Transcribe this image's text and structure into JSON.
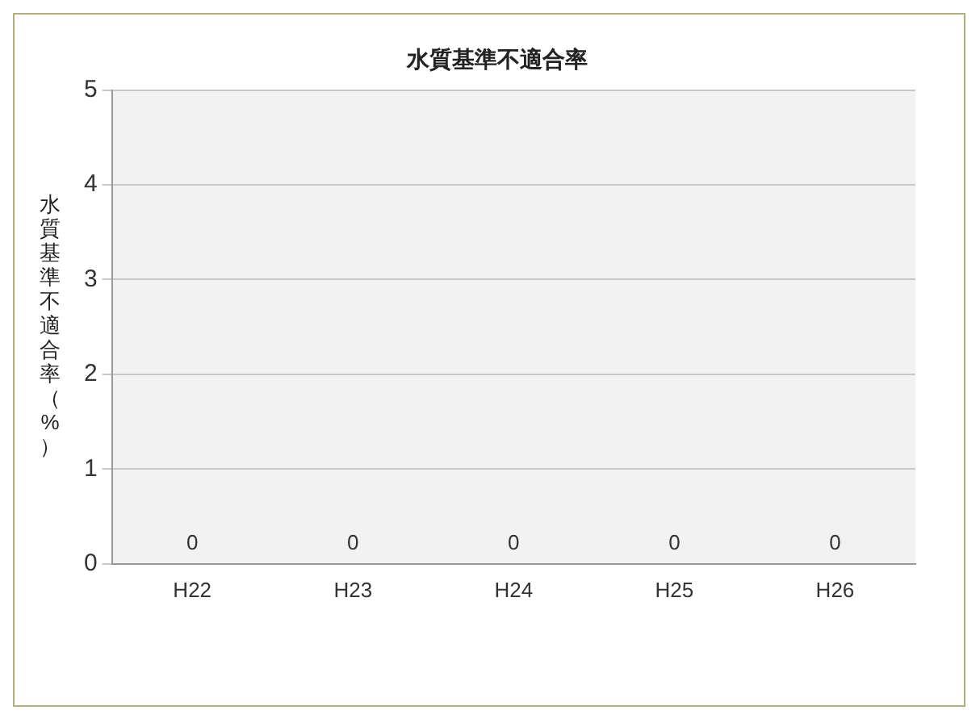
{
  "chart_data": {
    "type": "bar",
    "title": "水質基準不適合率",
    "ylabel": "水質基準不適合率（%）",
    "categories": [
      "H22",
      "H23",
      "H24",
      "H25",
      "H26"
    ],
    "values": [
      0,
      0,
      0,
      0,
      0
    ],
    "ylim": [
      0,
      5
    ],
    "yticks": [
      0,
      1,
      2,
      3,
      4,
      5
    ],
    "grid": "y",
    "data_labels": true,
    "legend": false
  }
}
